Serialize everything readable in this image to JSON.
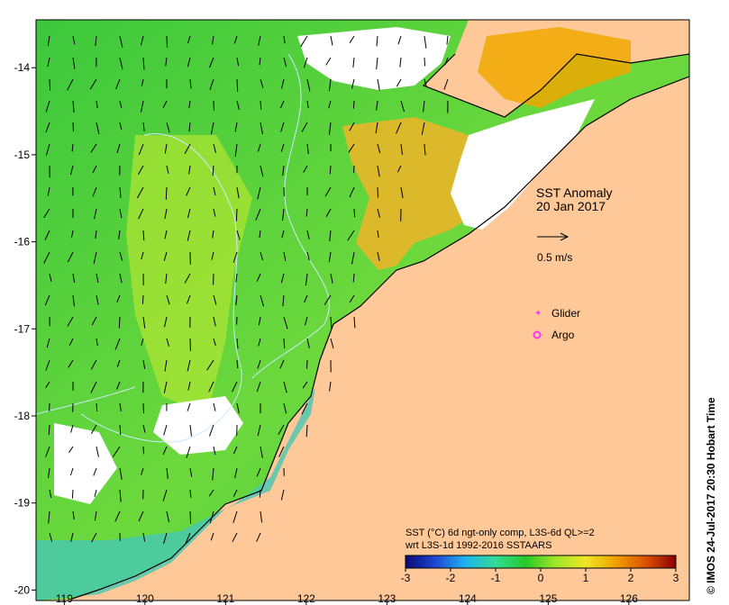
{
  "annotation": {
    "title_line1": "SST Anomaly",
    "title_line2": "20 Jan 2017",
    "scale_label": "0.5 m/s"
  },
  "legend": {
    "glider_label": "Glider",
    "argo_label": "Argo",
    "glider_color": "#ff33ff",
    "argo_color": "#ff33ff"
  },
  "colorbar": {
    "caption_line1": "SST (°C) 6d ngt-only comp, L3S-6d QL>=2",
    "caption_line2": "wrt L3S-1d 1992-2016 SSTAARS",
    "ticks": [
      "-3",
      "-2",
      "-1",
      "0",
      "1",
      "2",
      "3"
    ],
    "stops": [
      "#0a0a78",
      "#1e46d2",
      "#1eb4f0",
      "#32dc96",
      "#28c828",
      "#a0e628",
      "#f0e628",
      "#f0a000",
      "#dc5000",
      "#8c0000"
    ]
  },
  "axes": {
    "lon_ticks": [
      "119",
      "120",
      "121",
      "122",
      "123",
      "124",
      "125",
      "126"
    ],
    "lat_ticks": [
      "-14",
      "-15",
      "-16",
      "-17",
      "-18",
      "-19",
      "-20"
    ],
    "lon_range": [
      118.65,
      126.75
    ],
    "lat_range": [
      -20.12,
      -13.45
    ]
  },
  "colors": {
    "land": "#fec898",
    "coast": "#000000",
    "contour": "#cfe8ff"
  },
  "credit": "© IMOS 24-Jul-2017 20:30 Hobart Time"
}
